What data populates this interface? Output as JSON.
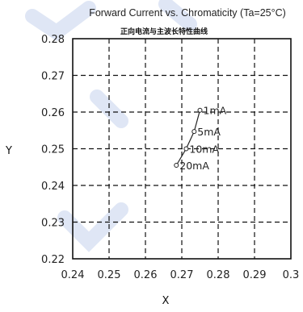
{
  "chart_data": {
    "type": "line",
    "title": "Forward Current vs. Chromaticity (Ta=25°C)",
    "subtitle": "正向电流与主波长特性曲线",
    "xlabel": "X",
    "ylabel": "Y",
    "xlim": [
      0.24,
      0.3
    ],
    "ylim": [
      0.22,
      0.28
    ],
    "x_ticks": [
      "0.24",
      "0.25",
      "0.26",
      "0.27",
      "0.28",
      "0.29",
      "0.3"
    ],
    "y_ticks": [
      "0.28",
      "0.27",
      "0.26",
      "0.25",
      "0.24",
      "0.23",
      "0.22"
    ],
    "grid": true,
    "series": [
      {
        "points": [
          {
            "x": 0.275,
            "y": 0.2605,
            "label": "1mA"
          },
          {
            "x": 0.2734,
            "y": 0.2547,
            "label": "5mA"
          },
          {
            "x": 0.2712,
            "y": 0.25,
            "label": "10mA"
          },
          {
            "x": 0.2685,
            "y": 0.2455,
            "label": "20mA"
          }
        ]
      }
    ]
  }
}
